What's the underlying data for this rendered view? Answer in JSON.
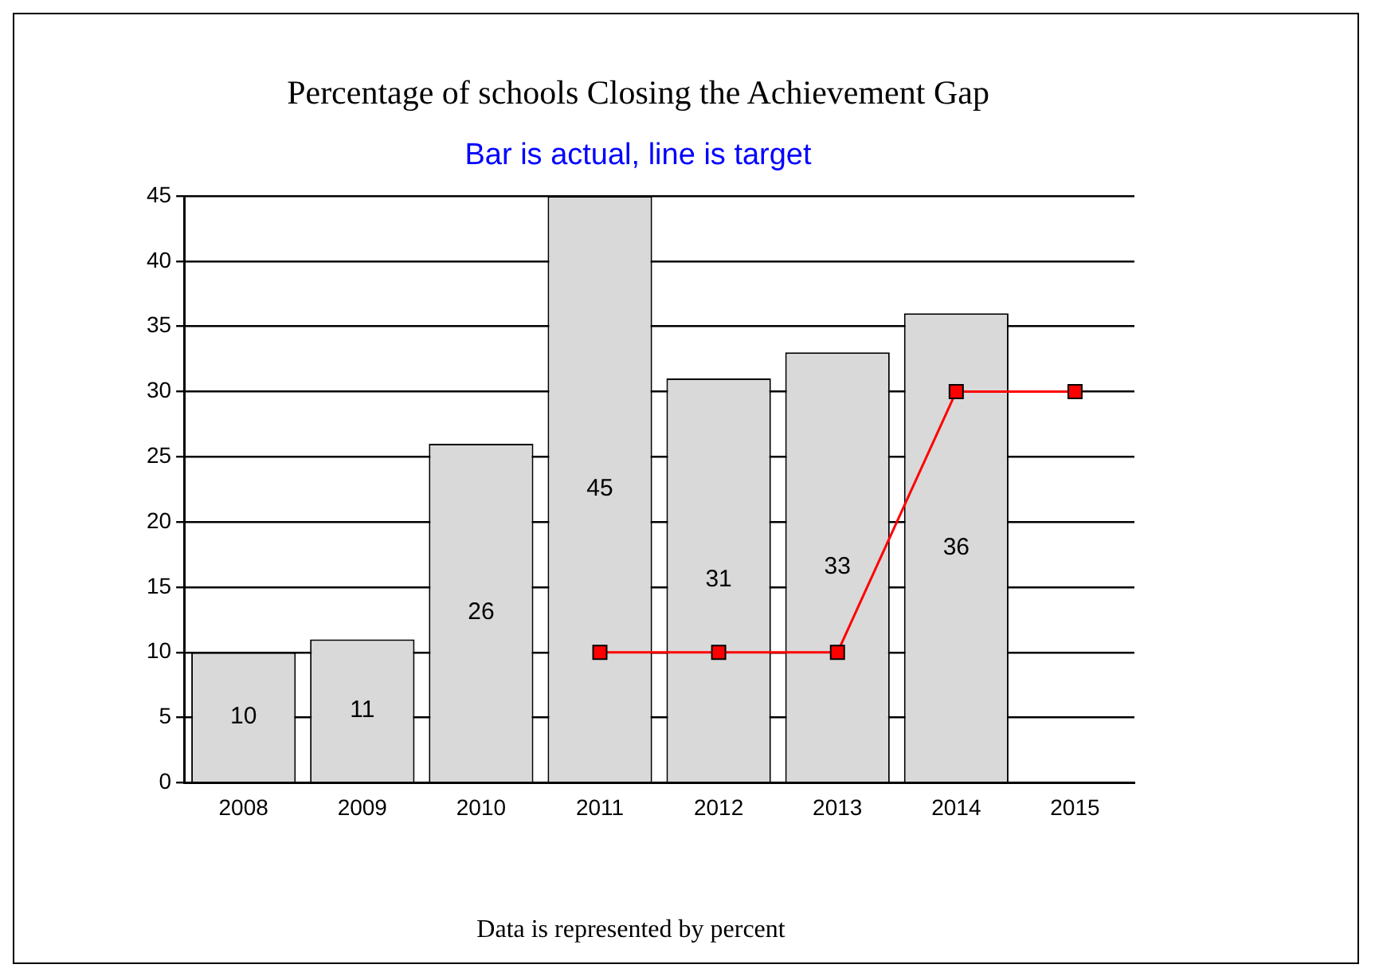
{
  "chart_data": {
    "type": "bar",
    "title": "Percentage of schools Closing the Achievement Gap",
    "subtitle": "Bar is actual, line is target",
    "categories": [
      "2008",
      "2009",
      "2010",
      "2011",
      "2012",
      "2013",
      "2014",
      "2015"
    ],
    "series": [
      {
        "color": "#d9d9d9",
        "values": [
          10,
          11,
          26,
          45,
          31,
          33,
          36,
          null
        ],
        "value_labels": [
          "10",
          "11",
          "26",
          "45",
          "31",
          "33",
          "36",
          null
        ]
      },
      {
        "type": "line",
        "color": "#ff0000",
        "marker": "square",
        "values": [
          null,
          null,
          null,
          10,
          10,
          10,
          30,
          30
        ]
      }
    ],
    "ylim": [
      0,
      45
    ],
    "yticks": [
      0,
      5,
      10,
      15,
      20,
      25,
      30,
      35,
      40,
      45
    ],
    "grid": "y",
    "legend": false,
    "annotations": [
      "Data is represented by percent"
    ]
  }
}
